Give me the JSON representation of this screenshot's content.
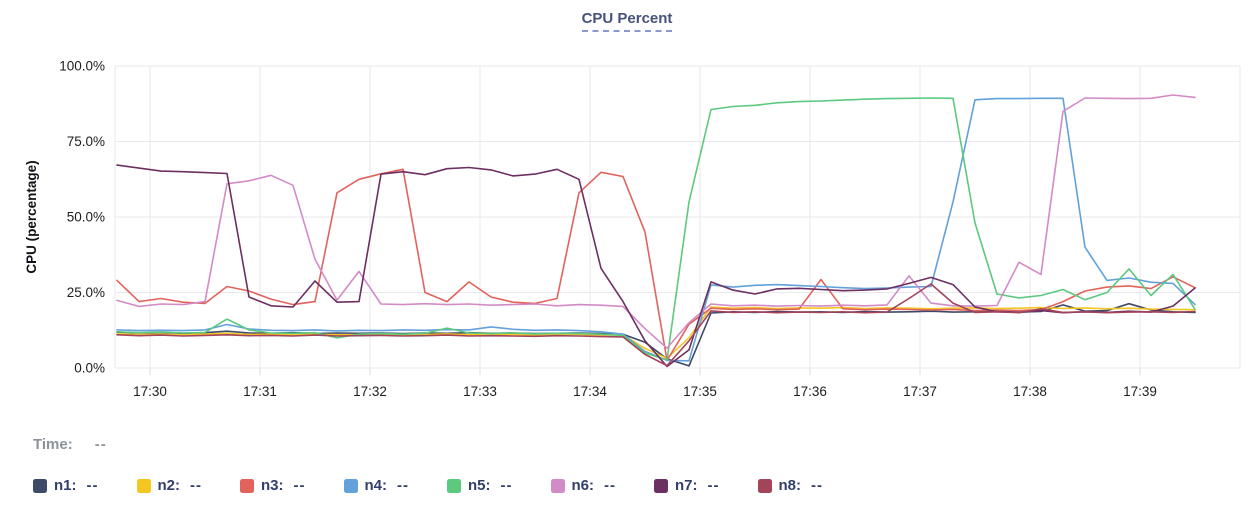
{
  "title": "CPU Percent",
  "y_axis": {
    "label": "CPU (percentage)",
    "tick_labels": [
      "100.0%",
      "75.0%",
      "50.0%",
      "25.0%",
      "0.0%"
    ],
    "tick_values": [
      100,
      75,
      50,
      25,
      0
    ]
  },
  "time_row": {
    "label": "Time:",
    "value": "--"
  },
  "legend": {
    "items": [
      {
        "name": "n1",
        "value": "--"
      },
      {
        "name": "n2",
        "value": "--"
      },
      {
        "name": "n3",
        "value": "--"
      },
      {
        "name": "n4",
        "value": "--"
      },
      {
        "name": "n5",
        "value": "--"
      },
      {
        "name": "n6",
        "value": "--"
      },
      {
        "name": "n7",
        "value": "--"
      },
      {
        "name": "n8",
        "value": "--"
      }
    ]
  },
  "colors": {
    "grid": "#e8e9ed",
    "axis_tick": "#d9dbe1",
    "title_text": "#47527b",
    "title_underline": "#8b99d2",
    "time_text": "#8c929b",
    "legend_text": "#323e6b"
  },
  "chart_data": {
    "type": "line",
    "title": "CPU Percent",
    "xlabel": "Time",
    "ylabel": "CPU (percentage)",
    "ylim": [
      0,
      100
    ],
    "grid": true,
    "legend_position": "bottom",
    "x_ticks": [
      "17:30",
      "17:31",
      "17:32",
      "17:33",
      "17:34",
      "17:35",
      "17:36",
      "17:37",
      "17:38",
      "17:39"
    ],
    "x_unit": "minutes after 17:30",
    "x": [
      -0.3,
      -0.1,
      0.1,
      0.3,
      0.5,
      0.7,
      0.9,
      1.1,
      1.3,
      1.5,
      1.7,
      1.9,
      2.1,
      2.3,
      2.5,
      2.7,
      2.9,
      3.1,
      3.3,
      3.5,
      3.7,
      3.9,
      4.1,
      4.3,
      4.5,
      4.7,
      4.9,
      5.1,
      5.3,
      5.5,
      5.7,
      5.9,
      6.1,
      6.3,
      6.5,
      6.7,
      6.9,
      7.1,
      7.3,
      7.5,
      7.7,
      7.9,
      8.1,
      8.3,
      8.5,
      8.7,
      8.9,
      9.1,
      9.3,
      9.5
    ],
    "series": [
      {
        "name": "n1",
        "color": "#3f4a68",
        "values": [
          11.9,
          11.6,
          11.8,
          11.5,
          11.7,
          12.2,
          11.6,
          11.5,
          11.7,
          11.4,
          11.6,
          11.5,
          11.6,
          11.4,
          11.6,
          11.5,
          11.7,
          11.5,
          11.6,
          11.4,
          11.5,
          11.6,
          11.4,
          11.2,
          8.5,
          3.0,
          0.7,
          18.2,
          18.6,
          18.4,
          18.7,
          18.5,
          18.6,
          18.4,
          18.7,
          18.5,
          18.6,
          18.8,
          18.5,
          18.6,
          18.8,
          18.5,
          18.7,
          20.9,
          18.8,
          19.0,
          21.3,
          19.2,
          18.6,
          18.4
        ]
      },
      {
        "name": "n2",
        "color": "#f4c622",
        "values": [
          11.3,
          11.1,
          11.2,
          11.0,
          11.2,
          11.5,
          11.1,
          11.2,
          11.0,
          11.2,
          11.0,
          11.1,
          11.2,
          11.0,
          11.1,
          11.3,
          11.0,
          11.2,
          11.1,
          11.0,
          11.2,
          11.1,
          10.9,
          11.0,
          6.5,
          3.2,
          10.0,
          20.2,
          19.8,
          20.0,
          19.7,
          19.9,
          19.8,
          20.0,
          19.7,
          19.9,
          19.8,
          19.6,
          19.8,
          19.9,
          19.7,
          19.8,
          20.0,
          19.7,
          19.9,
          19.6,
          19.8,
          19.5,
          19.4,
          19.3
        ]
      },
      {
        "name": "n3",
        "color": "#e2635c",
        "values": [
          29.0,
          22.0,
          23.0,
          21.8,
          21.4,
          27.0,
          25.5,
          22.8,
          21.0,
          22.0,
          58.0,
          62.5,
          64.3,
          65.8,
          25.0,
          22.0,
          28.5,
          23.5,
          21.8,
          21.4,
          23.0,
          58.0,
          64.8,
          63.4,
          45.0,
          2.5,
          14.5,
          19.8,
          19.4,
          19.6,
          19.3,
          19.5,
          29.3,
          19.6,
          19.3,
          19.5,
          19.4,
          19.2,
          19.4,
          19.0,
          19.2,
          19.0,
          19.3,
          22.0,
          25.5,
          26.8,
          27.2,
          26.3,
          30.2,
          26.6
        ]
      },
      {
        "name": "n4",
        "color": "#62a1da",
        "values": [
          12.6,
          12.4,
          12.5,
          12.4,
          12.6,
          14.4,
          12.9,
          12.5,
          12.4,
          12.6,
          12.3,
          12.5,
          12.4,
          12.6,
          12.5,
          12.7,
          12.6,
          13.6,
          12.8,
          12.5,
          12.6,
          12.4,
          12.0,
          11.2,
          5.5,
          2.5,
          2.4,
          27.5,
          26.8,
          27.4,
          27.6,
          27.3,
          27.0,
          26.6,
          26.3,
          26.5,
          26.8,
          27.0,
          55.0,
          88.8,
          89.2,
          89.2,
          89.3,
          89.3,
          40.0,
          29.0,
          29.8,
          28.4,
          28.0,
          21.0
        ]
      },
      {
        "name": "n5",
        "color": "#5cc97e",
        "values": [
          12.0,
          11.7,
          11.9,
          11.6,
          11.8,
          16.2,
          12.6,
          11.6,
          11.5,
          11.7,
          10.0,
          11.2,
          11.4,
          11.2,
          11.5,
          13.2,
          11.6,
          11.4,
          11.6,
          11.3,
          11.5,
          11.4,
          11.2,
          10.8,
          5.0,
          2.6,
          55.0,
          85.6,
          86.6,
          87.0,
          87.8,
          88.2,
          88.4,
          88.7,
          89.0,
          89.2,
          89.3,
          89.4,
          89.3,
          48.0,
          24.5,
          23.2,
          24.0,
          26.0,
          22.6,
          25.0,
          32.8,
          24.0,
          31.0,
          19.4
        ]
      },
      {
        "name": "n6",
        "color": "#d38bc7",
        "values": [
          22.4,
          20.4,
          21.2,
          21.0,
          22.0,
          61.0,
          62.0,
          63.8,
          60.5,
          36.0,
          22.5,
          32.0,
          21.2,
          21.0,
          21.3,
          21.0,
          21.2,
          20.8,
          21.0,
          21.2,
          20.6,
          21.0,
          20.8,
          20.4,
          13.0,
          6.6,
          15.0,
          21.2,
          20.6,
          20.8,
          20.5,
          20.7,
          20.5,
          20.8,
          20.6,
          20.9,
          30.5,
          21.5,
          20.6,
          20.5,
          20.7,
          35.0,
          31.0,
          85.0,
          89.4,
          89.3,
          89.2,
          89.3,
          90.4,
          89.6
        ]
      },
      {
        "name": "n7",
        "color": "#6c2f62",
        "values": [
          67.2,
          66.2,
          65.2,
          65.0,
          64.7,
          64.4,
          23.5,
          20.6,
          20.2,
          28.8,
          21.8,
          22.0,
          64.2,
          65.0,
          64.0,
          66.0,
          66.4,
          65.6,
          63.6,
          64.2,
          65.8,
          62.5,
          33.0,
          22.0,
          9.0,
          0.5,
          6.0,
          28.5,
          25.8,
          24.5,
          26.2,
          26.4,
          26.0,
          25.6,
          25.8,
          26.2,
          28.0,
          30.0,
          27.6,
          20.2,
          18.6,
          18.4,
          19.0,
          18.3,
          18.6,
          18.4,
          18.8,
          18.5,
          20.5,
          26.5
        ]
      },
      {
        "name": "n8",
        "color": "#a2445a",
        "values": [
          11.0,
          10.7,
          10.9,
          10.6,
          10.8,
          11.0,
          10.7,
          10.8,
          10.6,
          10.9,
          10.6,
          10.7,
          10.8,
          10.6,
          10.7,
          10.9,
          10.6,
          10.7,
          10.6,
          10.5,
          10.7,
          10.6,
          10.4,
          10.3,
          4.5,
          0.8,
          9.0,
          18.9,
          18.4,
          18.6,
          18.3,
          18.5,
          18.4,
          18.6,
          18.3,
          18.5,
          23.0,
          27.8,
          21.5,
          18.4,
          18.6,
          18.3,
          19.6,
          18.4,
          18.6,
          18.3,
          18.5,
          18.6,
          18.4,
          18.7
        ]
      }
    ]
  }
}
